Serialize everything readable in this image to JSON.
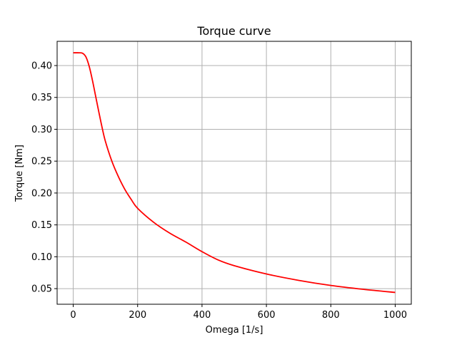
{
  "chart_data": {
    "type": "line",
    "title": "Torque curve",
    "xlabel": "Omega [1/s]",
    "ylabel": "Torque [Nm]",
    "xlim": [
      -50,
      1050
    ],
    "ylim": [
      0.0255,
      0.438
    ],
    "x_ticks": [
      0,
      200,
      400,
      600,
      800,
      1000
    ],
    "y_ticks": [
      0.05,
      0.1,
      0.15,
      0.2,
      0.25,
      0.3,
      0.35,
      0.4
    ],
    "x_tick_labels": [
      "0",
      "200",
      "400",
      "600",
      "800",
      "1000"
    ],
    "y_tick_labels": [
      "0.05",
      "0.10",
      "0.15",
      "0.20",
      "0.25",
      "0.30",
      "0.35",
      "0.40"
    ],
    "grid": true,
    "series": [
      {
        "color": "#ff0000",
        "x": [
          0,
          20,
          30,
          40,
          50,
          60,
          70,
          80,
          90,
          100,
          120,
          140,
          160,
          180,
          200,
          250,
          300,
          350,
          400,
          450,
          500,
          600,
          700,
          800,
          900,
          1000
        ],
        "y": [
          0.42,
          0.42,
          0.419,
          0.413,
          0.398,
          0.376,
          0.351,
          0.326,
          0.302,
          0.281,
          0.25,
          0.226,
          0.206,
          0.19,
          0.176,
          0.154,
          0.137,
          0.123,
          0.108,
          0.095,
          0.086,
          0.073,
          0.063,
          0.055,
          0.049,
          0.044
        ]
      }
    ]
  }
}
